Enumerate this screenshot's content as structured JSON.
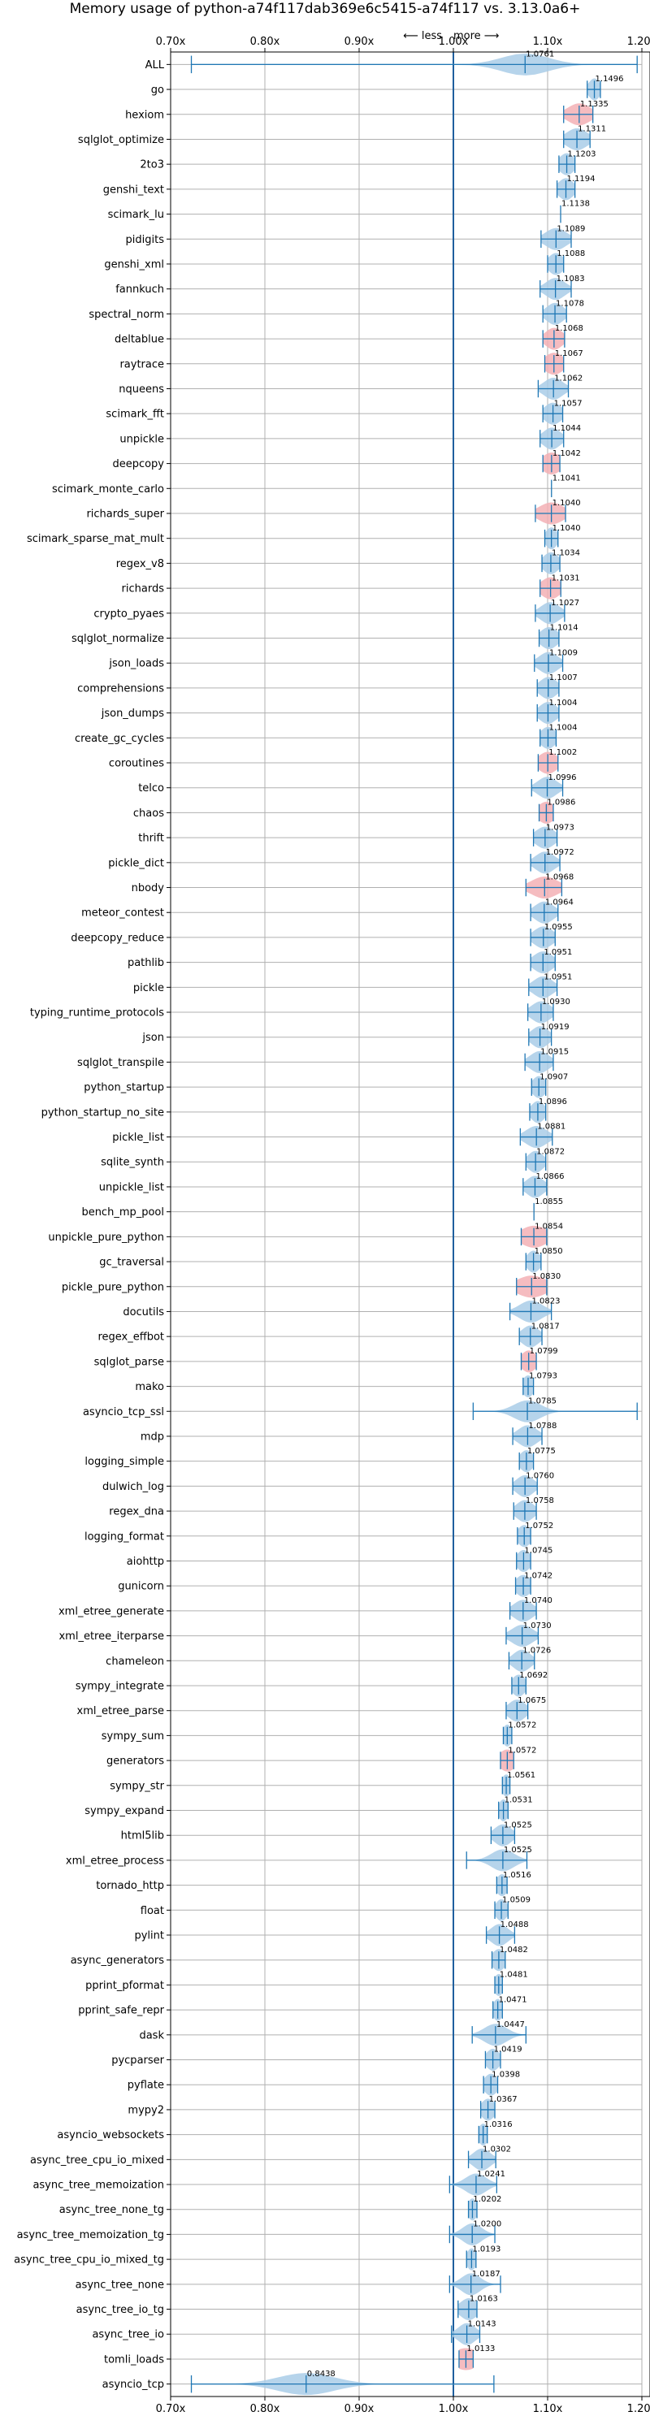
{
  "chart_data": {
    "type": "violin",
    "title": "Memory usage of python-a74f117dab369e6c5415-a74f117 vs. 3.13.0a6+",
    "direction_labels": {
      "less": "⟵ less",
      "more": "more ⟶"
    },
    "xlim": [
      0.7,
      1.2
    ],
    "x_ticks": [
      {
        "value": 0.7,
        "label": "0.70x"
      },
      {
        "value": 0.8,
        "label": "0.80x"
      },
      {
        "value": 0.9,
        "label": "0.90x"
      },
      {
        "value": 1.0,
        "label": "1.00x"
      },
      {
        "value": 1.1,
        "label": "1.10x"
      },
      {
        "value": 1.2,
        "label": "1.20x"
      }
    ],
    "reference_line": 1.0,
    "colors": {
      "violin": "#a9cce8",
      "highlight": "#f3b0b5",
      "line": "#1f77b4",
      "reference": "#1f5f9e",
      "grid": "#b0b0b0"
    },
    "benchmarks": [
      {
        "name": "ALL",
        "label": "1.0761",
        "median": 1.0761,
        "min": 0.722,
        "max": 1.195,
        "spread": 0.025
      },
      {
        "name": "go",
        "label": "1.1496",
        "median": 1.1496,
        "min": 1.142,
        "max": 1.156,
        "spread": 0.006
      },
      {
        "name": "hexiom",
        "label": "1.1335",
        "median": 1.1335,
        "min": 1.117,
        "max": 1.148,
        "spread": 0.012,
        "highlight": true
      },
      {
        "name": "sqlglot_optimize",
        "label": "1.1311",
        "median": 1.1311,
        "min": 1.117,
        "max": 1.145,
        "spread": 0.011
      },
      {
        "name": "2to3",
        "label": "1.1203",
        "median": 1.1203,
        "min": 1.112,
        "max": 1.129,
        "spread": 0.008
      },
      {
        "name": "genshi_text",
        "label": "1.1194",
        "median": 1.1194,
        "min": 1.11,
        "max": 1.129,
        "spread": 0.008
      },
      {
        "name": "scimark_lu",
        "label": "1.1138",
        "median": 1.1138,
        "min": 1.1138,
        "max": 1.1138,
        "spread": 0.0
      },
      {
        "name": "pidigits",
        "label": "1.1089",
        "median": 1.1089,
        "min": 1.093,
        "max": 1.125,
        "spread": 0.011
      },
      {
        "name": "genshi_xml",
        "label": "1.1088",
        "median": 1.1088,
        "min": 1.1,
        "max": 1.117,
        "spread": 0.008
      },
      {
        "name": "fannkuch",
        "label": "1.1083",
        "median": 1.1083,
        "min": 1.092,
        "max": 1.125,
        "spread": 0.01
      },
      {
        "name": "spectral_norm",
        "label": "1.1078",
        "median": 1.1078,
        "min": 1.095,
        "max": 1.12,
        "spread": 0.009
      },
      {
        "name": "deltablue",
        "label": "1.1068",
        "median": 1.1068,
        "min": 1.095,
        "max": 1.118,
        "spread": 0.009,
        "highlight": true
      },
      {
        "name": "raytrace",
        "label": "1.1067",
        "median": 1.1067,
        "min": 1.097,
        "max": 1.117,
        "spread": 0.01,
        "highlight": true
      },
      {
        "name": "nqueens",
        "label": "1.1062",
        "median": 1.1062,
        "min": 1.09,
        "max": 1.122,
        "spread": 0.01
      },
      {
        "name": "scimark_fft",
        "label": "1.1057",
        "median": 1.1057,
        "min": 1.095,
        "max": 1.116,
        "spread": 0.009
      },
      {
        "name": "unpickle",
        "label": "1.1044",
        "median": 1.1044,
        "min": 1.092,
        "max": 1.117,
        "spread": 0.009
      },
      {
        "name": "deepcopy",
        "label": "1.1042",
        "median": 1.1042,
        "min": 1.095,
        "max": 1.113,
        "spread": 0.01,
        "highlight": true
      },
      {
        "name": "scimark_monte_carlo",
        "label": "1.1041",
        "median": 1.1041,
        "min": 1.1041,
        "max": 1.1041,
        "spread": 0.0
      },
      {
        "name": "richards_super",
        "label": "1.1040",
        "median": 1.104,
        "min": 1.087,
        "max": 1.119,
        "spread": 0.013,
        "highlight": true
      },
      {
        "name": "scimark_sparse_mat_mult",
        "label": "1.1040",
        "median": 1.104,
        "min": 1.097,
        "max": 1.111,
        "spread": 0.006
      },
      {
        "name": "regex_v8",
        "label": "1.1034",
        "median": 1.1034,
        "min": 1.094,
        "max": 1.113,
        "spread": 0.008
      },
      {
        "name": "richards",
        "label": "1.1031",
        "median": 1.1031,
        "min": 1.092,
        "max": 1.114,
        "spread": 0.01,
        "highlight": true
      },
      {
        "name": "crypto_pyaes",
        "label": "1.1027",
        "median": 1.1027,
        "min": 1.087,
        "max": 1.118,
        "spread": 0.01
      },
      {
        "name": "sqlglot_normalize",
        "label": "1.1014",
        "median": 1.1014,
        "min": 1.091,
        "max": 1.112,
        "spread": 0.009
      },
      {
        "name": "json_loads",
        "label": "1.1009",
        "median": 1.1009,
        "min": 1.086,
        "max": 1.116,
        "spread": 0.01
      },
      {
        "name": "comprehensions",
        "label": "1.1007",
        "median": 1.1007,
        "min": 1.089,
        "max": 1.112,
        "spread": 0.009
      },
      {
        "name": "json_dumps",
        "label": "1.1004",
        "median": 1.1004,
        "min": 1.089,
        "max": 1.112,
        "spread": 0.009
      },
      {
        "name": "create_gc_cycles",
        "label": "1.1004",
        "median": 1.1004,
        "min": 1.092,
        "max": 1.109,
        "spread": 0.008
      },
      {
        "name": "coroutines",
        "label": "1.1002",
        "median": 1.1002,
        "min": 1.09,
        "max": 1.111,
        "spread": 0.01,
        "highlight": true
      },
      {
        "name": "telco",
        "label": "1.0996",
        "median": 1.0996,
        "min": 1.083,
        "max": 1.116,
        "spread": 0.01
      },
      {
        "name": "chaos",
        "label": "1.0986",
        "median": 1.0986,
        "min": 1.091,
        "max": 1.106,
        "spread": 0.009,
        "highlight": true
      },
      {
        "name": "thrift",
        "label": "1.0973",
        "median": 1.0973,
        "min": 1.085,
        "max": 1.11,
        "spread": 0.01
      },
      {
        "name": "pickle_dict",
        "label": "1.0972",
        "median": 1.0972,
        "min": 1.082,
        "max": 1.113,
        "spread": 0.01
      },
      {
        "name": "nbody",
        "label": "1.0968",
        "median": 1.0968,
        "min": 1.077,
        "max": 1.115,
        "spread": 0.014,
        "highlight": true
      },
      {
        "name": "meteor_contest",
        "label": "1.0964",
        "median": 1.0964,
        "min": 1.082,
        "max": 1.111,
        "spread": 0.01
      },
      {
        "name": "deepcopy_reduce",
        "label": "1.0955",
        "median": 1.0955,
        "min": 1.082,
        "max": 1.108,
        "spread": 0.01
      },
      {
        "name": "pathlib",
        "label": "1.0951",
        "median": 1.0951,
        "min": 1.082,
        "max": 1.108,
        "spread": 0.01
      },
      {
        "name": "pickle",
        "label": "1.0951",
        "median": 1.0951,
        "min": 1.08,
        "max": 1.11,
        "spread": 0.01
      },
      {
        "name": "typing_runtime_protocols",
        "label": "1.0930",
        "median": 1.093,
        "min": 1.079,
        "max": 1.106,
        "spread": 0.01
      },
      {
        "name": "json",
        "label": "1.0919",
        "median": 1.0919,
        "min": 1.08,
        "max": 1.104,
        "spread": 0.009
      },
      {
        "name": "sqlglot_transpile",
        "label": "1.0915",
        "median": 1.0915,
        "min": 1.076,
        "max": 1.106,
        "spread": 0.01
      },
      {
        "name": "python_startup",
        "label": "1.0907",
        "median": 1.0907,
        "min": 1.083,
        "max": 1.098,
        "spread": 0.007
      },
      {
        "name": "python_startup_no_site",
        "label": "1.0896",
        "median": 1.0896,
        "min": 1.081,
        "max": 1.098,
        "spread": 0.007
      },
      {
        "name": "pickle_list",
        "label": "1.0881",
        "median": 1.0881,
        "min": 1.071,
        "max": 1.105,
        "spread": 0.011
      },
      {
        "name": "sqlite_synth",
        "label": "1.0872",
        "median": 1.0872,
        "min": 1.077,
        "max": 1.098,
        "spread": 0.008
      },
      {
        "name": "unpickle_list",
        "label": "1.0866",
        "median": 1.0866,
        "min": 1.074,
        "max": 1.099,
        "spread": 0.009
      },
      {
        "name": "bench_mp_pool",
        "label": "1.0855",
        "median": 1.0855,
        "min": 1.0855,
        "max": 1.0855,
        "spread": 0.0
      },
      {
        "name": "unpickle_pure_python",
        "label": "1.0854",
        "median": 1.0854,
        "min": 1.072,
        "max": 1.099,
        "spread": 0.014,
        "highlight": true
      },
      {
        "name": "gc_traversal",
        "label": "1.0850",
        "median": 1.085,
        "min": 1.077,
        "max": 1.093,
        "spread": 0.007
      },
      {
        "name": "pickle_pure_python",
        "label": "1.0830",
        "median": 1.083,
        "min": 1.067,
        "max": 1.099,
        "spread": 0.016,
        "highlight": true
      },
      {
        "name": "docutils",
        "label": "1.0823",
        "median": 1.0823,
        "min": 1.06,
        "max": 1.104,
        "spread": 0.012
      },
      {
        "name": "regex_effbot",
        "label": "1.0817",
        "median": 1.0817,
        "min": 1.07,
        "max": 1.094,
        "spread": 0.009
      },
      {
        "name": "sqlglot_parse",
        "label": "1.0799",
        "median": 1.0799,
        "min": 1.072,
        "max": 1.088,
        "spread": 0.008,
        "highlight": true
      },
      {
        "name": "mako",
        "label": "1.0793",
        "median": 1.0793,
        "min": 1.074,
        "max": 1.085,
        "spread": 0.006
      },
      {
        "name": "asyncio_tcp_ssl",
        "label": "1.0785",
        "median": 1.0785,
        "min": 1.021,
        "max": 1.195,
        "spread": 0.014
      },
      {
        "name": "mdp",
        "label": "1.0788",
        "median": 1.0788,
        "min": 1.063,
        "max": 1.094,
        "spread": 0.01
      },
      {
        "name": "logging_simple",
        "label": "1.0775",
        "median": 1.0775,
        "min": 1.07,
        "max": 1.085,
        "spread": 0.007
      },
      {
        "name": "dulwich_log",
        "label": "1.0760",
        "median": 1.076,
        "min": 1.063,
        "max": 1.089,
        "spread": 0.009
      },
      {
        "name": "regex_dna",
        "label": "1.0758",
        "median": 1.0758,
        "min": 1.064,
        "max": 1.088,
        "spread": 0.009
      },
      {
        "name": "logging_format",
        "label": "1.0752",
        "median": 1.0752,
        "min": 1.068,
        "max": 1.082,
        "spread": 0.007
      },
      {
        "name": "aiohttp",
        "label": "1.0745",
        "median": 1.0745,
        "min": 1.067,
        "max": 1.082,
        "spread": 0.007
      },
      {
        "name": "gunicorn",
        "label": "1.0742",
        "median": 1.0742,
        "min": 1.066,
        "max": 1.082,
        "spread": 0.008
      },
      {
        "name": "xml_etree_generate",
        "label": "1.0740",
        "median": 1.074,
        "min": 1.06,
        "max": 1.088,
        "spread": 0.01
      },
      {
        "name": "xml_etree_iterparse",
        "label": "1.0730",
        "median": 1.073,
        "min": 1.056,
        "max": 1.09,
        "spread": 0.011
      },
      {
        "name": "chameleon",
        "label": "1.0726",
        "median": 1.0726,
        "min": 1.059,
        "max": 1.086,
        "spread": 0.009
      },
      {
        "name": "sympy_integrate",
        "label": "1.0692",
        "median": 1.0692,
        "min": 1.062,
        "max": 1.077,
        "spread": 0.007
      },
      {
        "name": "xml_etree_parse",
        "label": "1.0675",
        "median": 1.0675,
        "min": 1.056,
        "max": 1.079,
        "spread": 0.009
      },
      {
        "name": "sympy_sum",
        "label": "1.0572",
        "median": 1.0572,
        "min": 1.053,
        "max": 1.062,
        "spread": 0.005
      },
      {
        "name": "generators",
        "label": "1.0572",
        "median": 1.0572,
        "min": 1.05,
        "max": 1.064,
        "spread": 0.009,
        "highlight": true
      },
      {
        "name": "sympy_str",
        "label": "1.0561",
        "median": 1.0561,
        "min": 1.052,
        "max": 1.06,
        "spread": 0.005
      },
      {
        "name": "sympy_expand",
        "label": "1.0531",
        "median": 1.0531,
        "min": 1.048,
        "max": 1.058,
        "spread": 0.005
      },
      {
        "name": "html5lib",
        "label": "1.0525",
        "median": 1.0525,
        "min": 1.04,
        "max": 1.065,
        "spread": 0.009
      },
      {
        "name": "xml_etree_process",
        "label": "1.0525",
        "median": 1.0525,
        "min": 1.014,
        "max": 1.078,
        "spread": 0.012
      },
      {
        "name": "tornado_http",
        "label": "1.0516",
        "median": 1.0516,
        "min": 1.046,
        "max": 1.057,
        "spread": 0.006
      },
      {
        "name": "float",
        "label": "1.0509",
        "median": 1.0509,
        "min": 1.044,
        "max": 1.058,
        "spread": 0.006
      },
      {
        "name": "pylint",
        "label": "1.0488",
        "median": 1.0488,
        "min": 1.035,
        "max": 1.065,
        "spread": 0.009
      },
      {
        "name": "async_generators",
        "label": "1.0482",
        "median": 1.0482,
        "min": 1.041,
        "max": 1.055,
        "spread": 0.007
      },
      {
        "name": "pprint_pformat",
        "label": "1.0481",
        "median": 1.0481,
        "min": 1.044,
        "max": 1.052,
        "spread": 0.005
      },
      {
        "name": "pprint_safe_repr",
        "label": "1.0471",
        "median": 1.0471,
        "min": 1.042,
        "max": 1.052,
        "spread": 0.005
      },
      {
        "name": "dask",
        "label": "1.0447",
        "median": 1.0447,
        "min": 1.02,
        "max": 1.077,
        "spread": 0.012
      },
      {
        "name": "pycparser",
        "label": "1.0419",
        "median": 1.0419,
        "min": 1.034,
        "max": 1.05,
        "spread": 0.007
      },
      {
        "name": "pyflate",
        "label": "1.0398",
        "median": 1.0398,
        "min": 1.032,
        "max": 1.047,
        "spread": 0.007
      },
      {
        "name": "mypy2",
        "label": "1.0367",
        "median": 1.0367,
        "min": 1.029,
        "max": 1.044,
        "spread": 0.007
      },
      {
        "name": "asyncio_websockets",
        "label": "1.0316",
        "median": 1.0316,
        "min": 1.027,
        "max": 1.036,
        "spread": 0.005
      },
      {
        "name": "async_tree_cpu_io_mixed",
        "label": "1.0302",
        "median": 1.0302,
        "min": 1.016,
        "max": 1.045,
        "spread": 0.009
      },
      {
        "name": "async_tree_memoization",
        "label": "1.0241",
        "median": 1.0241,
        "min": 0.996,
        "max": 1.046,
        "spread": 0.011
      },
      {
        "name": "async_tree_none_tg",
        "label": "1.0202",
        "median": 1.0202,
        "min": 1.016,
        "max": 1.025,
        "spread": 0.005
      },
      {
        "name": "async_tree_memoization_tg",
        "label": "1.0200",
        "median": 1.02,
        "min": 0.996,
        "max": 1.044,
        "spread": 0.01
      },
      {
        "name": "async_tree_cpu_io_mixed_tg",
        "label": "1.0193",
        "median": 1.0193,
        "min": 1.014,
        "max": 1.024,
        "spread": 0.005
      },
      {
        "name": "async_tree_none",
        "label": "1.0187",
        "median": 1.0187,
        "min": 0.996,
        "max": 1.05,
        "spread": 0.01
      },
      {
        "name": "async_tree_io_tg",
        "label": "1.0163",
        "median": 1.0163,
        "min": 1.005,
        "max": 1.025,
        "spread": 0.009
      },
      {
        "name": "async_tree_io",
        "label": "1.0143",
        "median": 1.0143,
        "min": 0.998,
        "max": 1.028,
        "spread": 0.009
      },
      {
        "name": "tomli_loads",
        "label": "1.0133",
        "median": 1.0133,
        "min": 1.006,
        "max": 1.021,
        "spread": 0.014,
        "highlight": true
      },
      {
        "name": "asyncio_tcp",
        "label": "0.8438",
        "median": 0.8438,
        "min": 0.722,
        "max": 1.043,
        "spread": 0.03
      }
    ]
  }
}
